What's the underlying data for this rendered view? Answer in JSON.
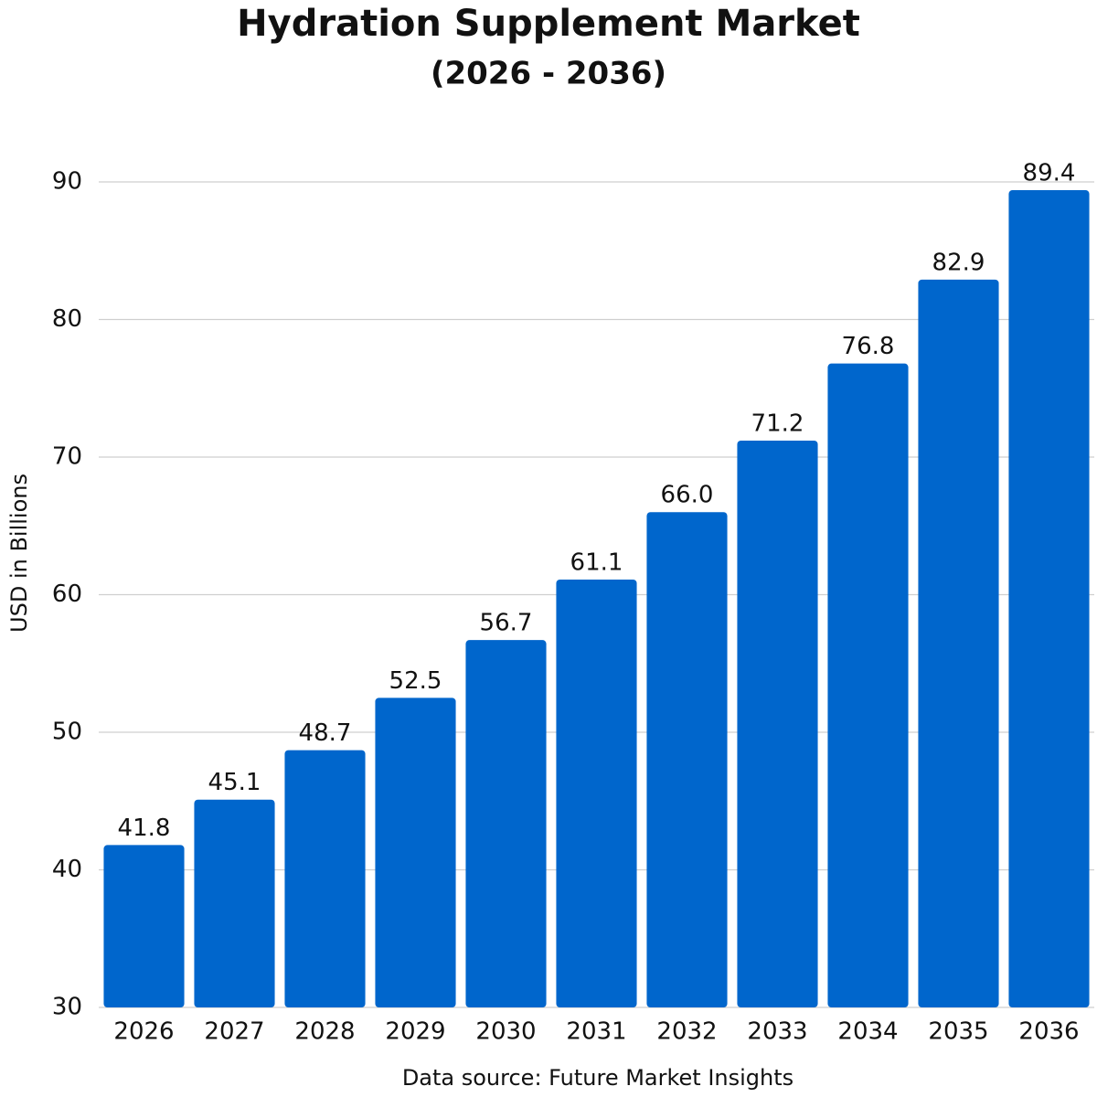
{
  "chart_data": {
    "type": "bar",
    "title": "Hydration Supplement Market",
    "subtitle": "(2026 - 2036)",
    "y_label": "USD in Billions",
    "source": "Data source: Future Market Insights",
    "categories": [
      "2026",
      "2027",
      "2028",
      "2029",
      "2030",
      "2031",
      "2032",
      "2033",
      "2034",
      "2035",
      "2036"
    ],
    "values": [
      41.8,
      45.1,
      48.7,
      52.5,
      56.7,
      61.1,
      66.0,
      71.2,
      76.8,
      82.9,
      89.4
    ],
    "value_labels": [
      "41.8",
      "45.1",
      "48.7",
      "52.5",
      "56.7",
      "61.1",
      "66.0",
      "71.2",
      "76.8",
      "82.9",
      "89.4"
    ],
    "color": "#0066cc",
    "ylim": [
      30,
      90
    ],
    "yticks": [
      30,
      40,
      50,
      60,
      70,
      80,
      90
    ],
    "grid": true
  }
}
